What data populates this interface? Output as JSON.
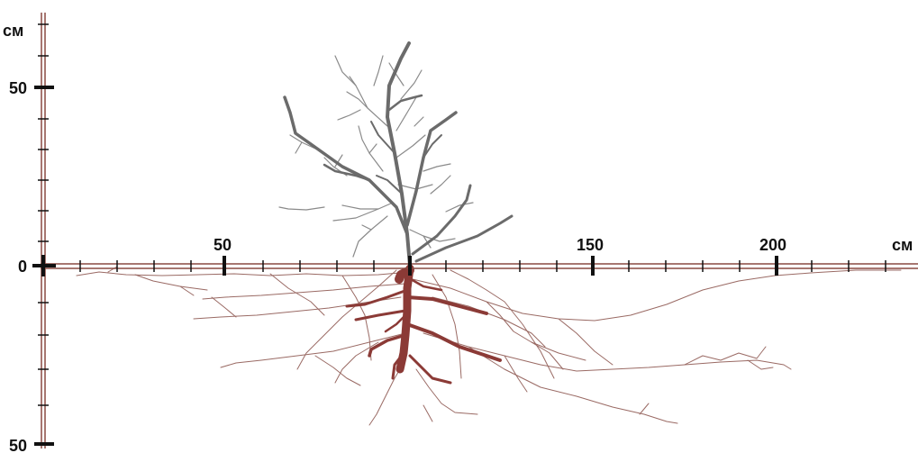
{
  "diagram": {
    "x_axis": {
      "unit": "см",
      "tick_labels": [
        "50",
        "150",
        "200"
      ]
    },
    "y_axis": {
      "unit": "см",
      "tick_labels": [
        "50",
        "0",
        "50"
      ]
    },
    "colors": {
      "axis_line": "#8a4a42",
      "axis_ticks": "#111111",
      "shoot": "#6b6b6b",
      "roots_main": "#8b3a36",
      "roots_fine": "#9a6a64"
    }
  }
}
